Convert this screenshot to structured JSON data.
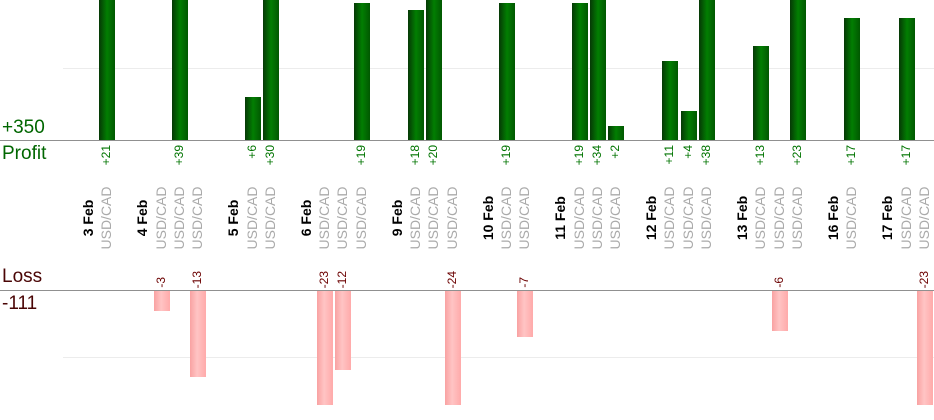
{
  "chart_data": {
    "type": "bar",
    "title": "",
    "description": "Per-trade profit and loss bar chart grouped by date, profit plotted upward above the Profit axis and loss plotted downward below the Loss axis",
    "legend_position": "none",
    "grid": "faint horizontal gridline at 10 units on each side",
    "profit_section": {
      "total_label": "+350",
      "axis_label": "Profit",
      "total": 350
    },
    "loss_section": {
      "total_label": "-111",
      "axis_label": "Loss",
      "total": -111
    },
    "groups": [
      {
        "date": "3 Feb",
        "trades": [
          {
            "symbol": "USD/CAD",
            "value": 21,
            "label": "+21"
          }
        ]
      },
      {
        "date": "4 Feb",
        "trades": [
          {
            "symbol": "USD/CAD",
            "value": -3,
            "label": "-3"
          },
          {
            "symbol": "USD/CAD",
            "value": 39,
            "label": "+39"
          },
          {
            "symbol": "USD/CAD",
            "value": -13,
            "label": "-13"
          }
        ]
      },
      {
        "date": "5 Feb",
        "trades": [
          {
            "symbol": "USD/CAD",
            "value": 6,
            "label": "+6"
          },
          {
            "symbol": "USD/CAD",
            "value": 30,
            "label": "+30"
          }
        ]
      },
      {
        "date": "6 Feb",
        "trades": [
          {
            "symbol": "USD/CAD",
            "value": -23,
            "label": "-23"
          },
          {
            "symbol": "USD/CAD",
            "value": -12,
            "label": "-12"
          },
          {
            "symbol": "USD/CAD",
            "value": 19,
            "label": "+19"
          }
        ]
      },
      {
        "date": "9 Feb",
        "trades": [
          {
            "symbol": "USD/CAD",
            "value": 18,
            "label": "+18"
          },
          {
            "symbol": "USD/CAD",
            "value": 20,
            "label": "+20"
          },
          {
            "symbol": "USD/CAD",
            "value": -24,
            "label": "-24"
          }
        ]
      },
      {
        "date": "10 Feb",
        "trades": [
          {
            "symbol": "USD/CAD",
            "value": 19,
            "label": "+19"
          },
          {
            "symbol": "USD/CAD",
            "value": -7,
            "label": "-7"
          }
        ]
      },
      {
        "date": "11 Feb",
        "trades": [
          {
            "symbol": "USD/CAD",
            "value": 19,
            "label": "+19"
          },
          {
            "symbol": "USD/CAD",
            "value": 34,
            "label": "+34"
          },
          {
            "symbol": "USD/CAD",
            "value": 2,
            "label": "+2"
          }
        ]
      },
      {
        "date": "12 Feb",
        "trades": [
          {
            "symbol": "USD/CAD",
            "value": 11,
            "label": "+11"
          },
          {
            "symbol": "USD/CAD",
            "value": 4,
            "label": "+4"
          },
          {
            "symbol": "USD/CAD",
            "value": 38,
            "label": "+38"
          }
        ]
      },
      {
        "date": "13 Feb",
        "trades": [
          {
            "symbol": "USD/CAD",
            "value": 13,
            "label": "+13"
          },
          {
            "symbol": "USD/CAD",
            "value": -6,
            "label": "-6"
          },
          {
            "symbol": "USD/CAD",
            "value": 23,
            "label": "+23"
          }
        ]
      },
      {
        "date": "16 Feb",
        "trades": [
          {
            "symbol": "USD/CAD",
            "value": 17,
            "label": "+17"
          }
        ]
      },
      {
        "date": "17 Feb",
        "trades": [
          {
            "symbol": "USD/CAD",
            "value": 17,
            "label": "+17"
          },
          {
            "symbol": "USD/CAD",
            "value": -23,
            "label": "-23"
          }
        ]
      }
    ],
    "colors": {
      "profit_bar": "#027e02",
      "loss_bar": "#ffb2b2",
      "profit_value_text": "#007400",
      "loss_value_text": "#6b0000",
      "profit_side_text": "#006600",
      "loss_side_text": "#4a0505",
      "date_text": "#000000",
      "symbol_text": "#aaaaaa",
      "axis_line": "#909090",
      "gridline": "#ececec"
    }
  }
}
